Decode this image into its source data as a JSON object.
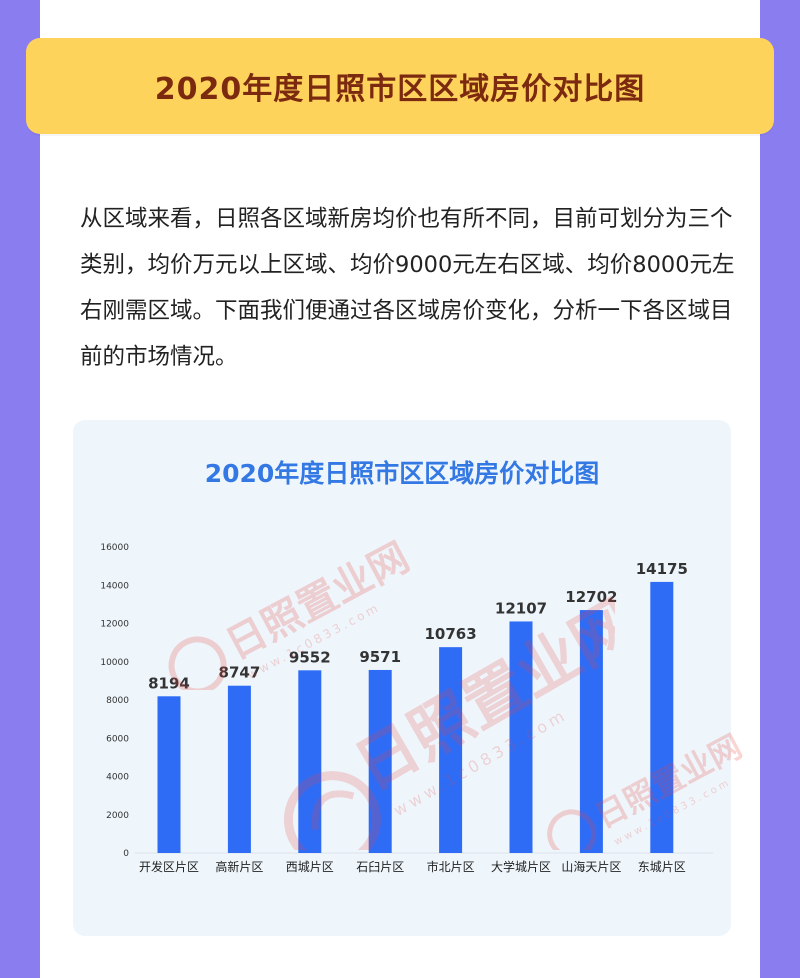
{
  "header": {
    "title": "2020年度日照市区区域房价对比图"
  },
  "intro": {
    "text": "从区域来看，日照各区域新房均价也有所不同，目前可划分为三个类别，均价万元以上区域、均价9000元左右区域、均价8000元左右刚需区域。下面我们便通过各区域房价变化，分析一下各区域目前的市场情况。"
  },
  "watermark": {
    "text": "日照置业网",
    "url": "www.1c0833.com"
  },
  "colors": {
    "background": "#8a7df0",
    "banner": "#fdd35c",
    "bar": "#2f6cf6",
    "chart_title": "#3478e4",
    "panel": "#eef6fc"
  },
  "chart_data": {
    "type": "bar",
    "title": "2020年度日照市区区域房价对比图",
    "xlabel": "",
    "ylabel": "",
    "categories": [
      "开发区片区",
      "高新片区",
      "西城片区",
      "石臼片区",
      "市北片区",
      "大学城片区",
      "山海天片区",
      "东城片区"
    ],
    "values": [
      8194,
      8747,
      9552,
      9571,
      10763,
      12107,
      12702,
      14175
    ],
    "ylim": [
      0,
      16000
    ],
    "yticks": [
      0,
      2000,
      4000,
      6000,
      8000,
      10000,
      12000,
      14000,
      16000
    ],
    "grid": false,
    "legend": "none"
  }
}
